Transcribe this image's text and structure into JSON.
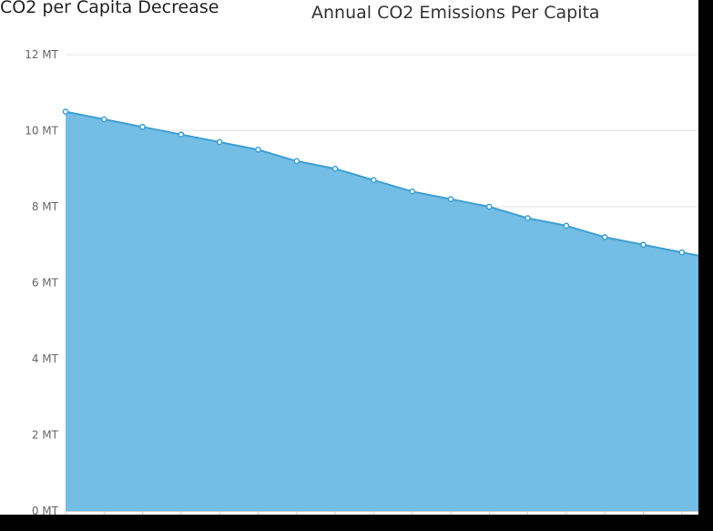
{
  "page": {
    "left_title": "CO2 per Capita Decrease",
    "chart_title": "Annual CO2 Emissions Per Capita"
  },
  "colors": {
    "area_fill": "#74bde5",
    "line": "#3d9fd3",
    "marker_fill": "#ffffff",
    "grid": "#e6e6e6",
    "axis": "#cccccc"
  },
  "chart_data": {
    "type": "area",
    "title": "Annual CO2 Emissions Per Capita",
    "xlabel": "",
    "ylabel": "",
    "ylim": [
      0,
      12
    ],
    "y_ticks": [
      0,
      2,
      4,
      6,
      8,
      10,
      12
    ],
    "y_tick_suffix": " MT",
    "y_tick_labels": [
      "0 MT",
      "2 MT",
      "4 MT",
      "6 MT",
      "8 MT",
      "10 MT",
      "12 MT"
    ],
    "grid": true,
    "series": [
      {
        "values": [
          10.5,
          10.3,
          10.1,
          9.9,
          9.7,
          9.5,
          9.2,
          9.0,
          8.7,
          8.4,
          8.2,
          8.0,
          7.7,
          7.5,
          7.2,
          7.0,
          6.8,
          6.6
        ]
      }
    ]
  }
}
